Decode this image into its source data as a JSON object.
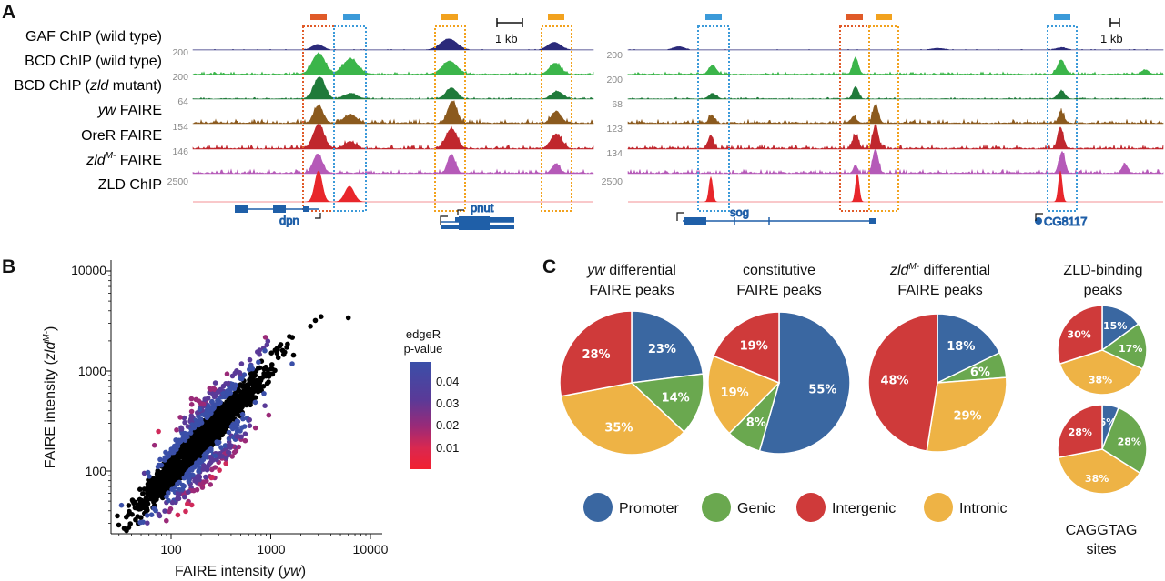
{
  "panel_letters": {
    "a": "A",
    "b": "B",
    "c": "C"
  },
  "colors": {
    "gaf": "#2b2a7a",
    "bcd_wt": "#3bb54a",
    "bcd_zld": "#1f7a3a",
    "yw": "#8b5a1e",
    "orer": "#c0272d",
    "zld_mut": "#b55ab8",
    "zld_chip": "#e8262b",
    "box_red": "#e05a28",
    "box_blue": "#3b9ad9",
    "box_orange": "#f2a21e",
    "gene": "#1f5fa8",
    "promoter": "#3a67a1",
    "genic": "#6aa84f",
    "intergenic": "#cf3a3a",
    "intronic": "#eeb345"
  },
  "panel_a": {
    "tracks": [
      {
        "key": "gaf",
        "label_pre": "GAF ChIP (wild type)",
        "italic": "",
        "label_post": "",
        "scale_left": "",
        "scale_right": ""
      },
      {
        "key": "bcd_wt",
        "label_pre": "BCD ChIP (wild type)",
        "italic": "",
        "label_post": "",
        "scale_left": "200",
        "scale_right": "200"
      },
      {
        "key": "bcd_zld",
        "label_pre": "BCD ChIP (",
        "italic": "zld",
        "label_post": " mutant)",
        "scale_left": "200",
        "scale_right": "200"
      },
      {
        "key": "yw",
        "label_pre": "",
        "italic": "yw",
        "label_post": " FAIRE",
        "scale_left": "64",
        "scale_right": "68"
      },
      {
        "key": "orer",
        "label_pre": "OreR FAIRE",
        "italic": "",
        "label_post": "",
        "scale_left": "154",
        "scale_right": "123"
      },
      {
        "key": "zld_mut",
        "label_pre": "",
        "italic": "zld",
        "sup": "M-",
        "label_post": " FAIRE",
        "scale_left": "146",
        "scale_right": "134"
      },
      {
        "key": "zld_chip",
        "label_pre": "ZLD ChIP",
        "italic": "",
        "label_post": "",
        "scale_left": "2500",
        "scale_right": "2500"
      }
    ],
    "scale_bar_left": "1 kb",
    "scale_bar_right": "1 kb",
    "genes_left": [
      "dpn",
      "pnut"
    ],
    "genes_right": [
      "sog",
      "CG8117"
    ]
  },
  "panel_b": {
    "xlabel_pre": "FAIRE intensity (",
    "xlabel_italic": "yw",
    "xlabel_post": ")",
    "ylabel_pre": "FAIRE intensity (",
    "ylabel_italic": "zld",
    "ylabel_sup": "M-",
    "ylabel_post": ")",
    "ticks": [
      "100",
      "1000",
      "10000"
    ],
    "colorbar_title": [
      "edgeR",
      "p-value"
    ],
    "colorbar_ticks": [
      "0.04",
      "0.03",
      "0.02",
      "0.01"
    ]
  },
  "panel_c": {
    "pies": [
      {
        "title_lines": [
          "differential",
          "FAIRE peaks"
        ],
        "title_italic": "yw",
        "slices": [
          {
            "cat": "promoter",
            "value": 23,
            "label": "23%"
          },
          {
            "cat": "genic",
            "value": 14,
            "label": "14%"
          },
          {
            "cat": "intronic",
            "value": 35,
            "label": "35%"
          },
          {
            "cat": "intergenic",
            "value": 28,
            "label": "28%"
          }
        ]
      },
      {
        "title_lines": [
          "constitutive",
          "FAIRE peaks"
        ],
        "title_italic": "",
        "slices": [
          {
            "cat": "promoter",
            "value": 55,
            "label": "55%"
          },
          {
            "cat": "genic",
            "value": 8,
            "label": "8%"
          },
          {
            "cat": "intronic",
            "value": 19,
            "label": "19%"
          },
          {
            "cat": "intergenic",
            "value": 19,
            "label": "19%"
          }
        ]
      },
      {
        "title_lines": [
          "differential",
          "FAIRE peaks"
        ],
        "title_italic": "zld",
        "title_sup": "M-",
        "slices": [
          {
            "cat": "promoter",
            "value": 18,
            "label": "18%"
          },
          {
            "cat": "genic",
            "value": 6,
            "label": "6%"
          },
          {
            "cat": "intronic",
            "value": 29,
            "label": "29%"
          },
          {
            "cat": "intergenic",
            "value": 48,
            "label": "48%"
          }
        ]
      },
      {
        "title_lines": [
          "ZLD-binding",
          "peaks"
        ],
        "title_italic": "",
        "slices": [
          {
            "cat": "promoter",
            "value": 15,
            "label": "15%"
          },
          {
            "cat": "genic",
            "value": 17,
            "label": "17%"
          },
          {
            "cat": "intronic",
            "value": 38,
            "label": "38%"
          },
          {
            "cat": "intergenic",
            "value": 30,
            "label": "30%"
          }
        ]
      },
      {
        "title_lines": [],
        "title_italic": "",
        "slices": [
          {
            "cat": "promoter",
            "value": 6,
            "label": "6%"
          },
          {
            "cat": "genic",
            "value": 28,
            "label": "28%"
          },
          {
            "cat": "intronic",
            "value": 38,
            "label": "38%"
          },
          {
            "cat": "intergenic",
            "value": 28,
            "label": "28%"
          }
        ]
      }
    ],
    "caggtag_label": [
      "CAGGTAG",
      "sites"
    ],
    "legend": [
      "Promoter",
      "Genic",
      "Intergenic",
      "Intronic"
    ]
  },
  "chart_data": [
    {
      "type": "scatter",
      "title": "",
      "xlabel": "FAIRE intensity (yw)",
      "ylabel": "FAIRE intensity (zldM-)",
      "xscale": "log",
      "yscale": "log",
      "xlim": [
        30,
        15000
      ],
      "ylim": [
        25,
        15000
      ],
      "series": [
        {
          "name": "not significant",
          "description": "black points along diagonal, ~100 to ~6000"
        },
        {
          "name": "edgeR p-value 0.00-0.05",
          "description": "red-to-blue colored off-diagonal points"
        }
      ],
      "colorbar": {
        "label": "edgeR p-value",
        "range": [
          0.0,
          0.05
        ]
      }
    },
    {
      "type": "pie",
      "title": "yw differential FAIRE peaks",
      "categories": [
        "Promoter",
        "Genic",
        "Intronic",
        "Intergenic"
      ],
      "values": [
        23,
        14,
        35,
        28
      ]
    },
    {
      "type": "pie",
      "title": "constitutive FAIRE peaks",
      "categories": [
        "Promoter",
        "Genic",
        "Intronic",
        "Intergenic"
      ],
      "values": [
        55,
        8,
        19,
        19
      ]
    },
    {
      "type": "pie",
      "title": "zldM- differential FAIRE peaks",
      "categories": [
        "Promoter",
        "Genic",
        "Intronic",
        "Intergenic"
      ],
      "values": [
        18,
        6,
        29,
        48
      ]
    },
    {
      "type": "pie",
      "title": "ZLD-binding peaks",
      "categories": [
        "Promoter",
        "Genic",
        "Intronic",
        "Intergenic"
      ],
      "values": [
        15,
        17,
        38,
        30
      ]
    },
    {
      "type": "pie",
      "title": "CAGGTAG sites",
      "categories": [
        "Promoter",
        "Genic",
        "Intronic",
        "Intergenic"
      ],
      "values": [
        6,
        28,
        38,
        28
      ]
    }
  ]
}
